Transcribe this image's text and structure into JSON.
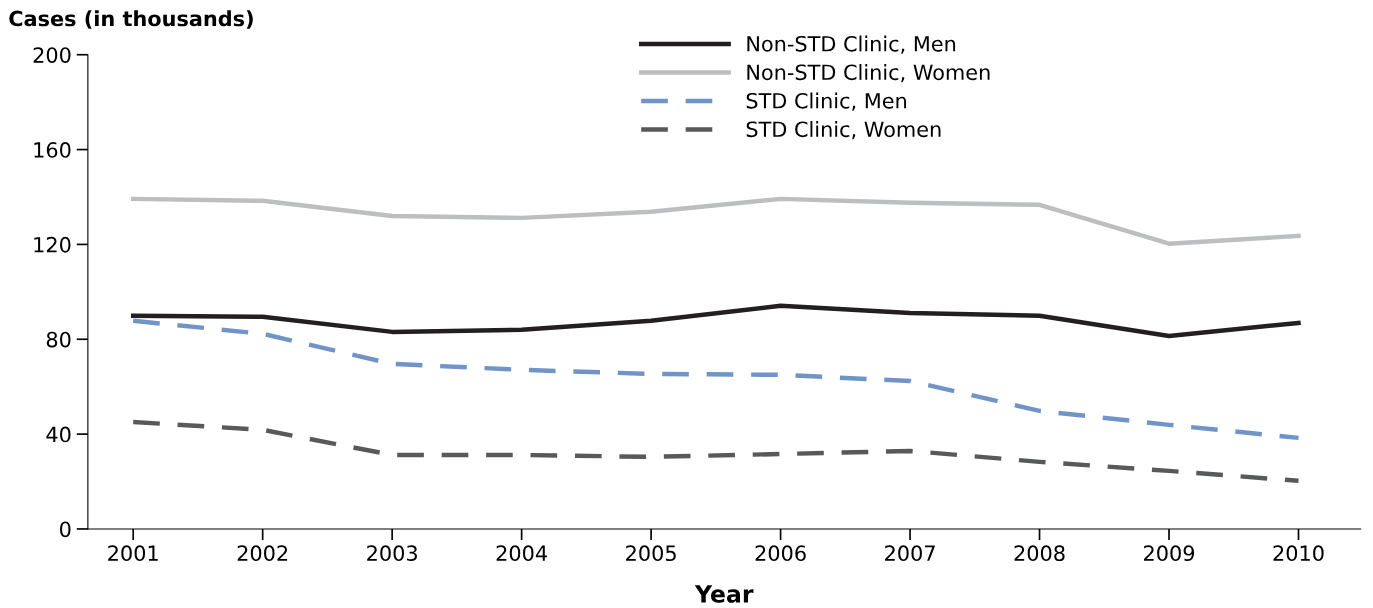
{
  "chart_data": {
    "type": "line",
    "xlabel": "Year",
    "ylabel": "Cases (in thousands)",
    "categories": [
      "2001",
      "2002",
      "2003",
      "2004",
      "2005",
      "2006",
      "2007",
      "2008",
      "2009",
      "2010"
    ],
    "series": [
      {
        "name": "Non-STD Clinic, Men",
        "color": "#231f20",
        "line_style": "solid",
        "values": [
          89.9,
          89.5,
          83.1,
          84.0,
          87.8,
          94.1,
          91.1,
          89.9,
          81.4,
          86.9
        ]
      },
      {
        "name": "Non-STD Clinic, Women",
        "color": "#bcbec0",
        "line_style": "solid",
        "values": [
          139.2,
          138.4,
          132.0,
          131.2,
          133.8,
          139.2,
          137.6,
          136.7,
          120.3,
          123.6
        ]
      },
      {
        "name": "STD Clinic, Men",
        "color": "#7093c8",
        "line_style": "dashed",
        "values": [
          87.8,
          82.3,
          69.6,
          67.1,
          65.4,
          65.0,
          62.4,
          49.8,
          43.9,
          38.4
        ]
      },
      {
        "name": "STD Clinic, Women",
        "color": "#58595b",
        "line_style": "dashed",
        "values": [
          45.1,
          41.8,
          31.2,
          31.2,
          30.4,
          31.6,
          32.9,
          28.3,
          24.5,
          20.3
        ]
      }
    ],
    "ylim": [
      0,
      200
    ],
    "yticks": [
      0,
      40,
      80,
      120,
      160,
      200
    ],
    "grid": false,
    "legend": "top",
    "marker": "none"
  }
}
